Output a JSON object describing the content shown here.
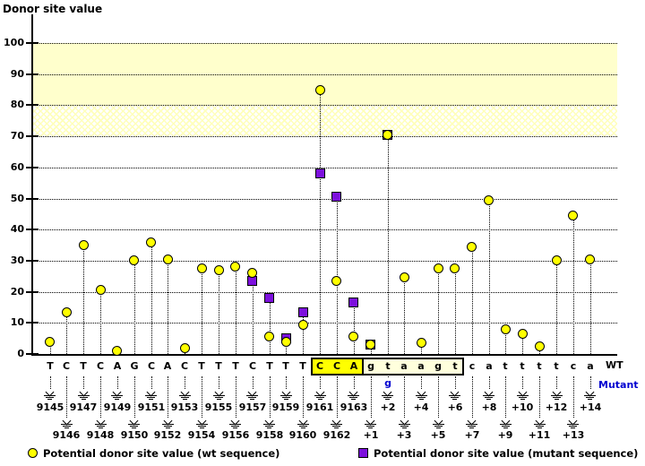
{
  "title": "Donor site value",
  "labels": {
    "wt": "WT",
    "mutant": "Mutant"
  },
  "legend": {
    "wt": "Potential donor site value (wt sequence)",
    "mutant": "Potential donor site value (mutant sequence)"
  },
  "colors": {
    "wt_marker": "#ffff00",
    "mutant_marker": "#7d10dd",
    "high_band": "#ffffcc",
    "box_exon_highlight": "#ffff00",
    "box_intron_highlight": "#ffffdd",
    "mutant_text": "#0000d0"
  },
  "chart_data": {
    "type": "scatter",
    "title": "Donor site value",
    "ylabel": "Donor site value",
    "ylim": [
      0,
      100
    ],
    "y_ticks": [
      0,
      10,
      20,
      30,
      40,
      50,
      60,
      70,
      80,
      90,
      100
    ],
    "grid": true,
    "bands": {
      "solid": [
        80,
        100
      ],
      "hatched": [
        70,
        80
      ]
    },
    "series_names": [
      "wt",
      "mutant"
    ],
    "columns": [
      {
        "pos": "9145",
        "base": "T",
        "wt": 4,
        "mut": null
      },
      {
        "pos": "9146",
        "base": "C",
        "wt": 13.5,
        "mut": null
      },
      {
        "pos": "9147",
        "base": "T",
        "wt": 35,
        "mut": null
      },
      {
        "pos": "9148",
        "base": "C",
        "wt": 20.5,
        "mut": null
      },
      {
        "pos": "9149",
        "base": "A",
        "wt": 1,
        "mut": null
      },
      {
        "pos": "9150",
        "base": "G",
        "wt": 30,
        "mut": null
      },
      {
        "pos": "9151",
        "base": "C",
        "wt": 36,
        "mut": null
      },
      {
        "pos": "9152",
        "base": "A",
        "wt": 30.5,
        "mut": null
      },
      {
        "pos": "9153",
        "base": "C",
        "wt": 2,
        "mut": null
      },
      {
        "pos": "9154",
        "base": "T",
        "wt": 27.5,
        "mut": null
      },
      {
        "pos": "9155",
        "base": "T",
        "wt": 27,
        "mut": null
      },
      {
        "pos": "9156",
        "base": "T",
        "wt": 28,
        "mut": null
      },
      {
        "pos": "9157",
        "base": "C",
        "wt": 26,
        "mut": 23.5
      },
      {
        "pos": "9158",
        "base": "T",
        "wt": 5.5,
        "mut": 18
      },
      {
        "pos": "9159",
        "base": "T",
        "wt": 4,
        "mut": 5
      },
      {
        "pos": "9160",
        "base": "T",
        "wt": 9.5,
        "mut": 13.5
      },
      {
        "pos": "9161",
        "base": "C",
        "wt": 85,
        "mut": 58
      },
      {
        "pos": "9162",
        "base": "C",
        "wt": 23.5,
        "mut": 50.5
      },
      {
        "pos": "9163",
        "base": "A",
        "wt": 5.5,
        "mut": 16.5
      },
      {
        "pos": "+1",
        "base": "g",
        "wt": 3,
        "mut": 3
      },
      {
        "pos": "+2",
        "base": "t",
        "wt": 70.5,
        "mut": 70.5
      },
      {
        "pos": "+3",
        "base": "a",
        "wt": 24.5,
        "mut": null
      },
      {
        "pos": "+4",
        "base": "a",
        "wt": 3.5,
        "mut": null
      },
      {
        "pos": "+5",
        "base": "g",
        "wt": 27.5,
        "mut": null
      },
      {
        "pos": "+6",
        "base": "t",
        "wt": 27.5,
        "mut": null
      },
      {
        "pos": "+7",
        "base": "c",
        "wt": 34.5,
        "mut": null
      },
      {
        "pos": "+8",
        "base": "a",
        "wt": 49.5,
        "mut": null
      },
      {
        "pos": "+9",
        "base": "t",
        "wt": 8,
        "mut": null
      },
      {
        "pos": "+10",
        "base": "t",
        "wt": 6.5,
        "mut": null
      },
      {
        "pos": "+11",
        "base": "t",
        "wt": 2.5,
        "mut": null
      },
      {
        "pos": "+12",
        "base": "t",
        "wt": 30,
        "mut": null
      },
      {
        "pos": "+13",
        "base": "c",
        "wt": 44.5,
        "mut": null
      },
      {
        "pos": "+14",
        "base": "a",
        "wt": 30.5,
        "mut": null
      }
    ],
    "splice_site_box": {
      "from_pos": "9161",
      "to_pos": "+6",
      "exon_part": "CCA",
      "intron_part": "gtaagt"
    },
    "mutation": {
      "pos": "+2",
      "wt_base": "t",
      "mutant_base": "g"
    }
  }
}
